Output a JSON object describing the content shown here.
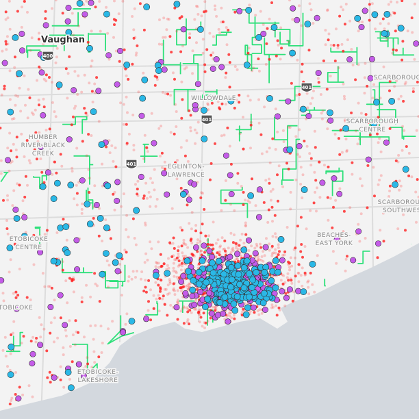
{
  "map": {
    "city_label": "Vaughan",
    "highway_shields": [
      "400",
      "401",
      "401",
      "401"
    ],
    "districts": [
      {
        "lines": [
          "WILLOWDALE"
        ]
      },
      {
        "lines": [
          "SCARBOROUGH"
        ]
      },
      {
        "lines": [
          "SCARBOROUGH",
          "CENTRE"
        ]
      },
      {
        "lines": [
          "HUMBER",
          "RIVER-BLACK",
          "CREEK"
        ]
      },
      {
        "lines": [
          "EGLINTON-",
          "LAWRENCE"
        ]
      },
      {
        "lines": [
          "ETOBICOKE",
          "CENTRE"
        ]
      },
      {
        "lines": [
          "ETOBICOKE"
        ]
      },
      {
        "lines": [
          "ETOBICOKE-",
          "LAKESHORE"
        ]
      },
      {
        "lines": [
          "SCARBOROUGH",
          "SOUTHWEST"
        ]
      },
      {
        "lines": [
          "BEACHES-",
          "EAST YORK"
        ]
      }
    ]
  }
}
